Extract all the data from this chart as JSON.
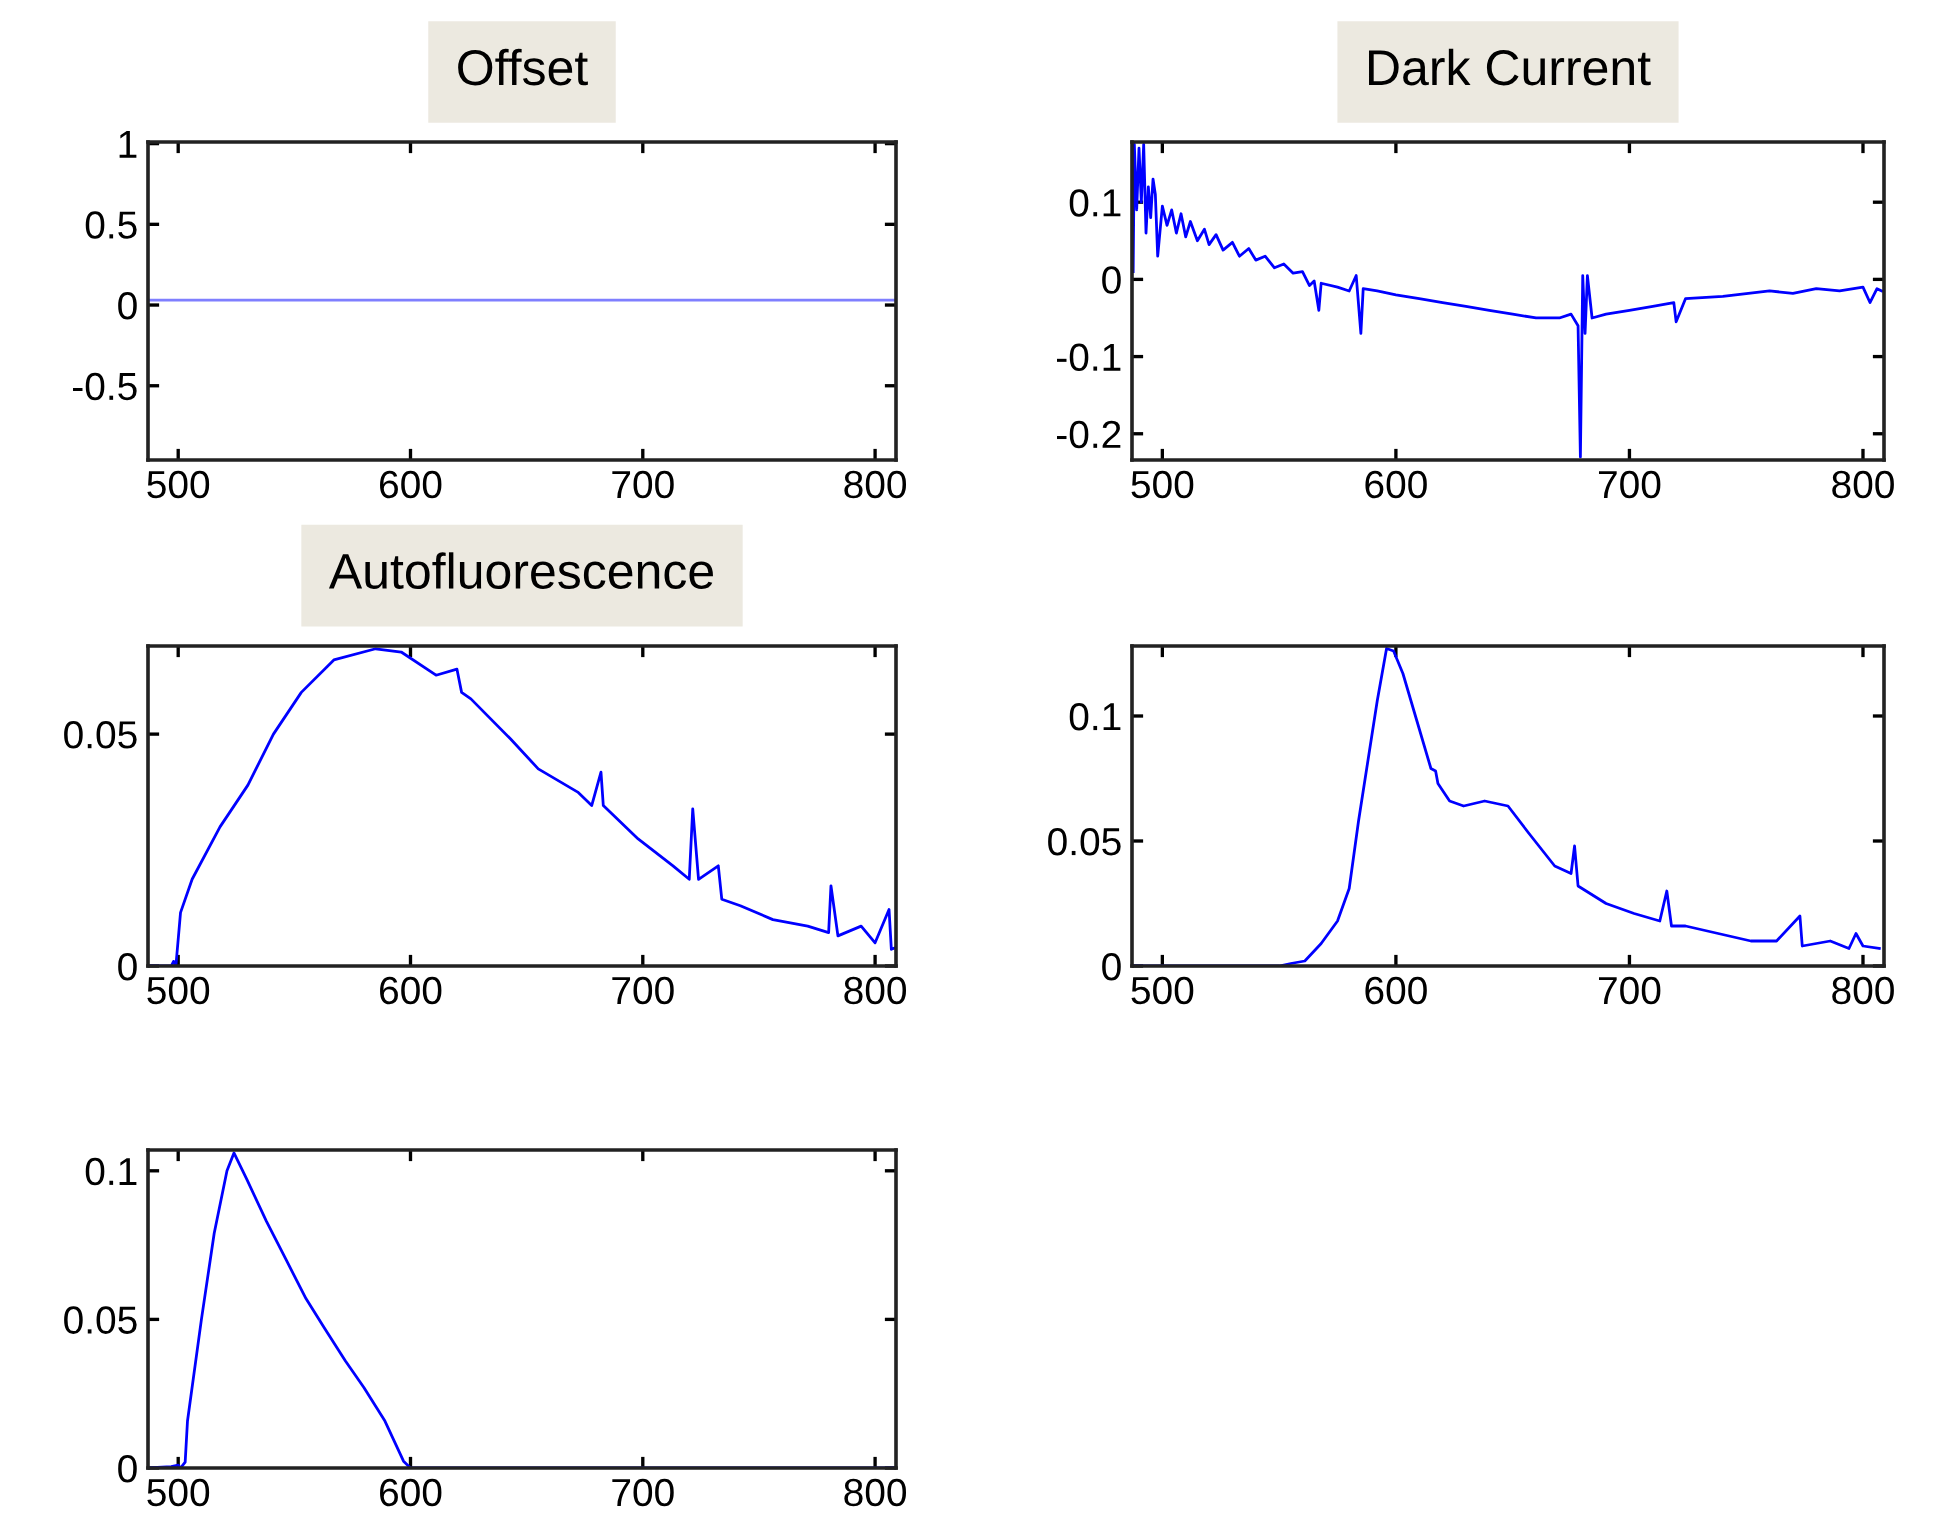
{
  "chart_data": [
    {
      "type": "line",
      "title": "Offset",
      "xlim": [
        487,
        809
      ],
      "xticks": [
        500,
        600,
        700,
        800
      ],
      "ylim": [
        -0.96,
        1.01
      ],
      "yticks": [
        -0.5,
        0,
        0.5,
        1
      ],
      "grid": false,
      "legend": false,
      "series": [
        {
          "color": "#7f7fff",
          "x": [
            487,
            809
          ],
          "values": [
            0.03,
            0.03
          ]
        }
      ]
    },
    {
      "type": "line",
      "title": "Dark Current",
      "xlim": [
        487,
        809
      ],
      "xticks": [
        500,
        600,
        700,
        800
      ],
      "ylim": [
        -0.234,
        0.178
      ],
      "yticks": [
        -0.2,
        -0.1,
        0,
        0.1
      ],
      "grid": false,
      "legend": false,
      "series": [
        {
          "color": "#0000ff",
          "x": [
            487.5,
            488,
            489,
            490,
            491,
            492,
            493,
            494,
            495,
            496,
            497,
            498,
            500,
            502,
            504,
            506,
            508,
            510,
            512,
            515,
            518,
            520,
            523,
            526,
            530,
            533,
            537,
            540,
            544,
            548,
            552,
            556,
            560,
            563,
            565,
            567,
            568,
            575,
            580,
            583,
            585,
            586,
            592,
            600,
            610,
            620,
            630,
            640,
            650,
            660,
            670,
            675,
            678,
            679,
            680,
            681,
            682,
            684,
            690,
            700,
            710,
            719,
            720,
            724,
            740,
            760,
            770,
            780,
            790,
            800,
            803,
            806,
            808
          ],
          "values": [
            0.01,
            0.175,
            0.09,
            0.17,
            0.1,
            0.175,
            0.06,
            0.12,
            0.08,
            0.13,
            0.11,
            0.03,
            0.095,
            0.07,
            0.09,
            0.06,
            0.085,
            0.055,
            0.075,
            0.05,
            0.065,
            0.045,
            0.058,
            0.038,
            0.048,
            0.03,
            0.04,
            0.025,
            0.03,
            0.015,
            0.02,
            0.008,
            0.01,
            -0.008,
            -0.002,
            -0.04,
            -0.005,
            -0.01,
            -0.015,
            0.005,
            -0.07,
            -0.012,
            -0.015,
            -0.02,
            -0.025,
            -0.03,
            -0.035,
            -0.04,
            -0.045,
            -0.05,
            -0.05,
            -0.045,
            -0.06,
            -0.23,
            0.005,
            -0.07,
            0.005,
            -0.05,
            -0.045,
            -0.04,
            -0.035,
            -0.03,
            -0.055,
            -0.025,
            -0.022,
            -0.015,
            -0.018,
            -0.012,
            -0.015,
            -0.01,
            -0.03,
            -0.012,
            -0.015
          ]
        }
      ]
    },
    {
      "type": "line",
      "title": "Autofluorescence",
      "xlim": [
        487,
        809
      ],
      "xticks": [
        500,
        600,
        700,
        800
      ],
      "ylim": [
        0,
        0.069
      ],
      "yticks": [
        0,
        0.05
      ],
      "grid": false,
      "legend": false,
      "series": [
        {
          "color": "#0000ff",
          "x": [
            487,
            497,
            498,
            499,
            501,
            506,
            518,
            530,
            541,
            553,
            567,
            585,
            596,
            611,
            620,
            622,
            626,
            643,
            655,
            672,
            678,
            682,
            683,
            698,
            713,
            720,
            721.5,
            724,
            732.5,
            734,
            742,
            756,
            771,
            780,
            781,
            784,
            794,
            800,
            806,
            807,
            809
          ],
          "values": [
            0,
            0,
            0.001,
            0,
            0.0115,
            0.0187,
            0.03,
            0.039,
            0.05,
            0.059,
            0.066,
            0.0684,
            0.0677,
            0.0627,
            0.064,
            0.059,
            0.0576,
            0.049,
            0.0425,
            0.0375,
            0.0346,
            0.0418,
            0.0346,
            0.0274,
            0.0216,
            0.0187,
            0.0339,
            0.0187,
            0.0216,
            0.0144,
            0.013,
            0.01,
            0.0086,
            0.0072,
            0.0173,
            0.0065,
            0.0086,
            0.005,
            0.0122,
            0.0036,
            0.004
          ]
        }
      ]
    },
    {
      "type": "line",
      "xlim": [
        487,
        809
      ],
      "xticks": [
        500,
        600,
        700,
        800
      ],
      "ylim": [
        0,
        0.128
      ],
      "yticks": [
        0,
        0.05,
        0.1
      ],
      "grid": false,
      "legend": false,
      "series": [
        {
          "color": "#0000ff",
          "x": [
            487,
            550,
            555,
            561,
            568,
            575,
            580,
            584,
            588,
            592,
            596,
            599,
            603,
            609,
            615,
            617,
            618,
            623,
            629,
            638,
            648,
            657,
            668,
            675,
            676.5,
            678,
            690,
            702,
            713,
            716,
            718,
            724,
            738,
            752,
            763,
            773,
            774,
            786,
            794,
            797,
            800,
            807
          ],
          "values": [
            0,
            0,
            0.001,
            0.002,
            0.009,
            0.018,
            0.031,
            0.058,
            0.082,
            0.106,
            0.127,
            0.126,
            0.117,
            0.098,
            0.079,
            0.078,
            0.073,
            0.066,
            0.064,
            0.066,
            0.064,
            0.053,
            0.04,
            0.037,
            0.048,
            0.032,
            0.025,
            0.021,
            0.018,
            0.03,
            0.016,
            0.016,
            0.013,
            0.01,
            0.01,
            0.02,
            0.008,
            0.01,
            0.007,
            0.013,
            0.008,
            0.007
          ]
        }
      ]
    },
    {
      "type": "line",
      "xlim": [
        487,
        809
      ],
      "xticks": [
        500,
        600,
        700,
        800
      ],
      "ylim": [
        0,
        0.107
      ],
      "yticks": [
        0,
        0.05,
        0.1
      ],
      "grid": false,
      "legend": false,
      "series": [
        {
          "color": "#0000ff",
          "x": [
            487,
            497,
            500,
            501,
            503,
            504,
            510,
            515.5,
            521,
            524,
            529.6,
            538,
            546.5,
            555,
            563,
            572,
            580,
            589,
            597,
            600,
            809
          ],
          "values": [
            0,
            0.0005,
            0.001,
            0,
            0.002,
            0.0158,
            0.05,
            0.079,
            0.1,
            0.106,
            0.097,
            0.083,
            0.07,
            0.057,
            0.047,
            0.036,
            0.027,
            0.0158,
            0.0023,
            0,
            0
          ]
        }
      ]
    }
  ]
}
